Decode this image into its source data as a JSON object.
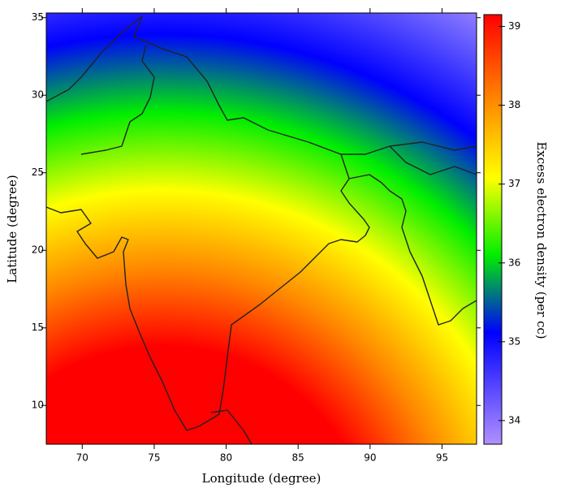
{
  "chart_data": {
    "type": "heatmap",
    "xlabel": "Longitude (degree)",
    "ylabel": "Latitude (degree)",
    "colorbar_label": "Excess electron density (per cc)",
    "xlim": [
      67.5,
      97.4
    ],
    "ylim": [
      7.5,
      35.3
    ],
    "xticks": [
      70,
      75,
      80,
      85,
      90,
      95
    ],
    "yticks": [
      10,
      15,
      20,
      25,
      30,
      35
    ],
    "clim": [
      33.7,
      39.15
    ],
    "cticks": [
      34,
      35,
      36,
      37,
      38,
      39
    ]
  }
}
